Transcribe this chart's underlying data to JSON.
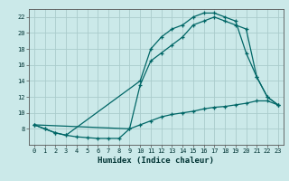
{
  "bg_color": "#cbe9e9",
  "grid_color": "#aacccc",
  "line_color": "#006666",
  "xlabel": "Humidex (Indice chaleur)",
  "xlim": [
    -0.5,
    23.5
  ],
  "ylim": [
    6,
    23
  ],
  "yticks": [
    8,
    10,
    12,
    14,
    16,
    18,
    20,
    22
  ],
  "xticks": [
    0,
    1,
    2,
    3,
    4,
    5,
    6,
    7,
    8,
    9,
    10,
    11,
    12,
    13,
    14,
    15,
    16,
    17,
    18,
    19,
    20,
    21,
    22,
    23
  ],
  "line1_x": [
    0,
    1,
    2,
    3,
    10,
    11,
    12,
    13,
    14,
    15,
    16,
    17,
    18,
    19,
    20,
    21,
    22,
    23
  ],
  "line1_y": [
    8.5,
    8.0,
    7.5,
    7.2,
    14.0,
    18.0,
    19.5,
    20.5,
    21.0,
    22.0,
    22.5,
    22.5,
    22.0,
    21.5,
    17.5,
    14.5,
    12.0,
    11.0
  ],
  "line2_x": [
    0,
    9,
    10,
    11,
    12,
    13,
    14,
    15,
    16,
    17,
    18,
    19,
    20,
    21,
    22,
    23
  ],
  "line2_y": [
    8.5,
    8.0,
    13.5,
    16.5,
    17.5,
    18.5,
    19.5,
    21.0,
    21.5,
    22.0,
    21.5,
    21.0,
    20.5,
    14.5,
    12.0,
    11.0
  ],
  "line3_x": [
    0,
    1,
    2,
    3,
    4,
    5,
    6,
    7,
    8,
    9,
    10,
    11,
    12,
    13,
    14,
    15,
    16,
    17,
    18,
    19,
    20,
    21,
    22,
    23
  ],
  "line3_y": [
    8.5,
    8.0,
    7.5,
    7.2,
    7.0,
    6.9,
    6.8,
    6.8,
    6.8,
    8.0,
    8.5,
    9.0,
    9.5,
    9.8,
    10.0,
    10.2,
    10.5,
    10.7,
    10.8,
    11.0,
    11.2,
    11.5,
    11.5,
    11.0
  ],
  "xlabel_fontsize": 6.5,
  "tick_fontsize": 5.0
}
